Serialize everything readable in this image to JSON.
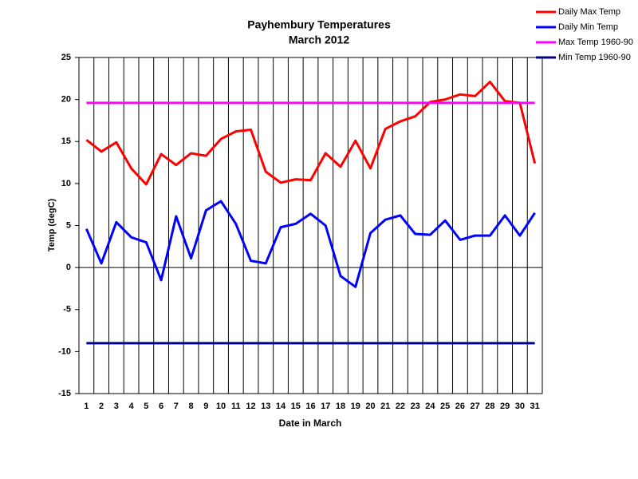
{
  "chart_data": {
    "type": "line",
    "title": "Payhembury Temperatures",
    "subtitle": "March 2012",
    "x_label": "Date in March",
    "y_label": "Temp (degC)",
    "categories": [
      1,
      2,
      3,
      4,
      5,
      6,
      7,
      8,
      9,
      10,
      11,
      12,
      13,
      14,
      15,
      16,
      17,
      18,
      19,
      20,
      21,
      22,
      23,
      24,
      25,
      26,
      27,
      28,
      29,
      30,
      31
    ],
    "series": [
      {
        "name": "Daily Max Temp",
        "color": "#ff0000",
        "values": [
          15.2,
          13.8,
          14.9,
          11.8,
          9.9,
          13.5,
          12.2,
          13.6,
          13.3,
          15.3,
          16.2,
          16.4,
          11.4,
          10.1,
          10.5,
          10.4,
          13.6,
          12.0,
          15.1,
          11.8,
          16.5,
          17.4,
          18.0,
          19.7,
          20.0,
          20.6,
          20.4,
          22.1,
          19.8,
          19.6,
          12.4
        ]
      },
      {
        "name": "Daily Min Temp",
        "color": "#0000ff",
        "values": [
          4.6,
          0.5,
          5.4,
          3.6,
          3.0,
          -1.5,
          6.1,
          1.1,
          6.8,
          7.9,
          5.2,
          0.8,
          0.5,
          4.8,
          5.2,
          6.4,
          5.0,
          -1.0,
          -2.3,
          4.1,
          5.7,
          6.2,
          4.0,
          3.9,
          5.6,
          3.3,
          3.8,
          3.8,
          6.2,
          3.8,
          6.5
        ]
      },
      {
        "name": "Max Temp 1960-90",
        "color": "#ff00ff",
        "values": [
          19.6,
          19.6,
          19.6,
          19.6,
          19.6,
          19.6,
          19.6,
          19.6,
          19.6,
          19.6,
          19.6,
          19.6,
          19.6,
          19.6,
          19.6,
          19.6,
          19.6,
          19.6,
          19.6,
          19.6,
          19.6,
          19.6,
          19.6,
          19.6,
          19.6,
          19.6,
          19.6,
          19.6,
          19.6,
          19.6,
          19.6
        ]
      },
      {
        "name": "Min Temp 1960-90",
        "color": "#000080",
        "values": [
          -9,
          -9,
          -9,
          -9,
          -9,
          -9,
          -9,
          -9,
          -9,
          -9,
          -9,
          -9,
          -9,
          -9,
          -9,
          -9,
          -9,
          -9,
          -9,
          -9,
          -9,
          -9,
          -9,
          -9,
          -9,
          -9,
          -9,
          -9,
          -9,
          -9,
          -9
        ]
      }
    ],
    "ylim": [
      -15,
      25
    ],
    "yticks": [
      -15,
      -10,
      -5,
      0,
      5,
      10,
      15,
      20,
      25
    ],
    "vertical_grid": true,
    "legend": "top-right"
  }
}
